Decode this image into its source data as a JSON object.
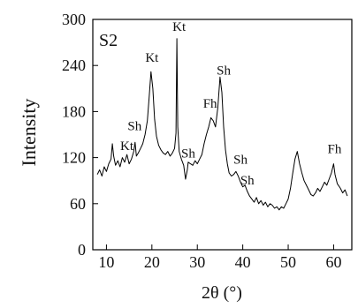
{
  "chart_data": {
    "type": "line",
    "panel_label": "S2",
    "xlabel": "2θ (°)",
    "ylabel": "Intensity",
    "xlim": [
      7,
      64
    ],
    "ylim": [
      0,
      300
    ],
    "xticks": [
      10,
      20,
      30,
      40,
      50,
      60
    ],
    "yticks": [
      0,
      60,
      120,
      180,
      240,
      300
    ],
    "grid": false,
    "legend": "none",
    "line_color": "#000000",
    "series": [
      {
        "values_xy": [
          [
            8,
            98
          ],
          [
            8.5,
            104
          ],
          [
            9,
            96
          ],
          [
            9.5,
            108
          ],
          [
            10,
            102
          ],
          [
            10.5,
            112
          ],
          [
            11,
            118
          ],
          [
            11.3,
            138
          ],
          [
            11.6,
            122
          ],
          [
            12,
            110
          ],
          [
            12.5,
            116
          ],
          [
            13,
            108
          ],
          [
            13.5,
            120
          ],
          [
            14,
            114
          ],
          [
            14.5,
            124
          ],
          [
            15,
            112
          ],
          [
            15.5,
            118
          ],
          [
            16,
            128
          ],
          [
            16.3,
            140
          ],
          [
            16.6,
            122
          ],
          [
            17,
            126
          ],
          [
            17.5,
            132
          ],
          [
            18,
            138
          ],
          [
            18.5,
            150
          ],
          [
            19,
            168
          ],
          [
            19.4,
            198
          ],
          [
            19.8,
            232
          ],
          [
            20.2,
            210
          ],
          [
            20.6,
            170
          ],
          [
            21,
            148
          ],
          [
            21.5,
            136
          ],
          [
            22,
            130
          ],
          [
            22.5,
            126
          ],
          [
            23,
            124
          ],
          [
            23.5,
            128
          ],
          [
            24,
            122
          ],
          [
            24.5,
            126
          ],
          [
            25,
            132
          ],
          [
            25.3,
            152
          ],
          [
            25.5,
            275
          ],
          [
            25.7,
            160
          ],
          [
            26,
            128
          ],
          [
            26.5,
            118
          ],
          [
            27,
            110
          ],
          [
            27.4,
            92
          ],
          [
            27.8,
            104
          ],
          [
            28,
            114
          ],
          [
            28.5,
            112
          ],
          [
            29,
            110
          ],
          [
            29.5,
            116
          ],
          [
            30,
            112
          ],
          [
            30.5,
            118
          ],
          [
            31,
            124
          ],
          [
            31.5,
            138
          ],
          [
            32,
            150
          ],
          [
            32.5,
            160
          ],
          [
            33,
            172
          ],
          [
            33.5,
            168
          ],
          [
            34,
            160
          ],
          [
            34.5,
            185
          ],
          [
            35,
            225
          ],
          [
            35.4,
            205
          ],
          [
            35.8,
            160
          ],
          [
            36.2,
            130
          ],
          [
            36.6,
            112
          ],
          [
            37,
            100
          ],
          [
            37.5,
            96
          ],
          [
            38,
            98
          ],
          [
            38.5,
            102
          ],
          [
            39,
            96
          ],
          [
            39.5,
            88
          ],
          [
            40,
            82
          ],
          [
            40.5,
            84
          ],
          [
            41,
            76
          ],
          [
            41.5,
            70
          ],
          [
            42,
            66
          ],
          [
            42.5,
            62
          ],
          [
            43,
            68
          ],
          [
            43.5,
            60
          ],
          [
            44,
            64
          ],
          [
            44.5,
            58
          ],
          [
            45,
            62
          ],
          [
            45.5,
            56
          ],
          [
            46,
            60
          ],
          [
            46.5,
            58
          ],
          [
            47,
            54
          ],
          [
            47.5,
            56
          ],
          [
            48,
            52
          ],
          [
            48.5,
            56
          ],
          [
            49,
            54
          ],
          [
            49.5,
            60
          ],
          [
            50,
            66
          ],
          [
            50.5,
            80
          ],
          [
            51,
            100
          ],
          [
            51.5,
            118
          ],
          [
            52,
            128
          ],
          [
            52.5,
            112
          ],
          [
            53,
            100
          ],
          [
            53.5,
            90
          ],
          [
            54,
            84
          ],
          [
            54.5,
            78
          ],
          [
            55,
            72
          ],
          [
            55.5,
            70
          ],
          [
            56,
            74
          ],
          [
            56.5,
            80
          ],
          [
            57,
            76
          ],
          [
            57.5,
            82
          ],
          [
            58,
            88
          ],
          [
            58.5,
            84
          ],
          [
            59,
            92
          ],
          [
            59.5,
            100
          ],
          [
            60,
            112
          ],
          [
            60.3,
            98
          ],
          [
            60.8,
            86
          ],
          [
            61.5,
            80
          ],
          [
            62,
            74
          ],
          [
            62.5,
            78
          ],
          [
            63,
            70
          ]
        ]
      }
    ],
    "annotations": [
      {
        "text": "Kt",
        "x": 14.5,
        "y": 130
      },
      {
        "text": "Sh",
        "x": 16.2,
        "y": 156
      },
      {
        "text": "Kt",
        "x": 20.0,
        "y": 245
      },
      {
        "text": "Kt",
        "x": 26.0,
        "y": 285
      },
      {
        "text": "Sh",
        "x": 28.0,
        "y": 120
      },
      {
        "text": "Fh",
        "x": 32.8,
        "y": 185
      },
      {
        "text": "Sh",
        "x": 35.8,
        "y": 228
      },
      {
        "text": "Sh",
        "x": 39.5,
        "y": 112
      },
      {
        "text": "Sh",
        "x": 41.0,
        "y": 85
      },
      {
        "text": "Fh",
        "x": 60.2,
        "y": 126
      }
    ]
  }
}
